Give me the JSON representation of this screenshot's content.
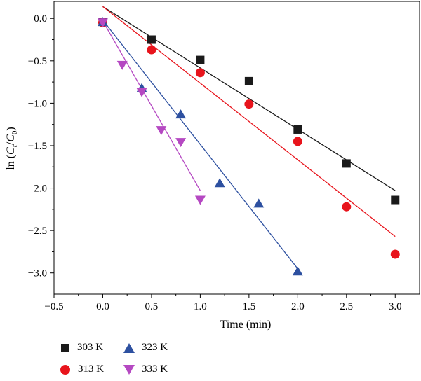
{
  "chart_data": {
    "type": "scatter",
    "xlabel": "Time (min)",
    "ylabel_parts": {
      "pre": "ln (",
      "c1": "C",
      "s1": "t",
      "slash": "/",
      "c2": "C",
      "s2": "0",
      "post": ")"
    },
    "xlim": [
      -0.5,
      3.25
    ],
    "ylim": [
      -3.25,
      0.2
    ],
    "x_ticks": [
      -0.5,
      0.0,
      0.5,
      1.0,
      1.5,
      2.0,
      2.5,
      3.0
    ],
    "x_tick_labels": [
      "−0.5",
      "0.0",
      "0.5",
      "1.0",
      "1.5",
      "2.0",
      "2.5",
      "3.0"
    ],
    "y_ticks": [
      0.0,
      -0.5,
      -1.0,
      -1.5,
      -2.0,
      -2.5,
      -3.0
    ],
    "y_tick_labels": [
      "0.0",
      "−0.5",
      "−1.0",
      "−1.5",
      "−2.0",
      "−2.5",
      "−3.0"
    ],
    "grid": false,
    "legend_position": "bottom-left below plot",
    "series": [
      {
        "name": "303 K",
        "marker": "square",
        "color": "#1a1a1a",
        "x": [
          0,
          0.5,
          1.0,
          1.5,
          2.0,
          2.5,
          3.0
        ],
        "y": [
          -0.04,
          -0.25,
          -0.49,
          -0.74,
          -1.31,
          -1.71,
          -2.14
        ],
        "fit": {
          "x": [
            0,
            3.0
          ],
          "y": [
            0.14,
            -2.03
          ]
        }
      },
      {
        "name": "313 K",
        "marker": "circle",
        "color": "#e8141c",
        "x": [
          0,
          0.5,
          1.0,
          1.5,
          2.0,
          2.5,
          3.0
        ],
        "y": [
          -0.05,
          -0.37,
          -0.64,
          -1.01,
          -1.45,
          -2.22,
          -2.78
        ],
        "fit": {
          "x": [
            0,
            3.0
          ],
          "y": [
            0.14,
            -2.57
          ]
        }
      },
      {
        "name": "323 K",
        "marker": "triangle-up",
        "color": "#2d50a0",
        "x": [
          0,
          0.4,
          0.8,
          1.2,
          1.6,
          2.0
        ],
        "y": [
          -0.04,
          -0.82,
          -1.13,
          -1.94,
          -2.18,
          -2.98
        ],
        "fit": {
          "x": [
            0,
            2.0
          ],
          "y": [
            -0.02,
            -2.95
          ]
        }
      },
      {
        "name": "333 K",
        "marker": "triangle-down",
        "color": "#b548c2",
        "x": [
          0,
          0.2,
          0.4,
          0.6,
          0.8,
          1.0
        ],
        "y": [
          -0.05,
          -0.55,
          -0.87,
          -1.32,
          -1.46,
          -2.14
        ],
        "fit": {
          "x": [
            0,
            1.0
          ],
          "y": [
            -0.03,
            -2.03
          ]
        }
      }
    ]
  }
}
